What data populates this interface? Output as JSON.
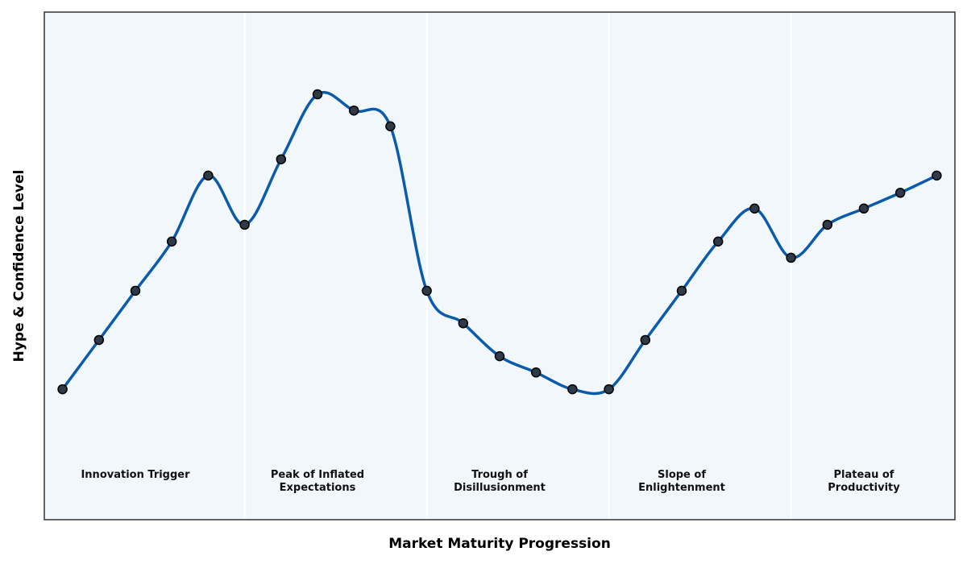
{
  "chart_data": {
    "type": "line",
    "xlabel": "Market Maturity Progression",
    "ylabel": "Hype & Confidence Level",
    "x": [
      0,
      1,
      2,
      3,
      4,
      5,
      6,
      7,
      8,
      9,
      10,
      11,
      12,
      13,
      14,
      15,
      16,
      17,
      18,
      19,
      20,
      21,
      22,
      23,
      24
    ],
    "values": [
      25.7,
      35.4,
      45.1,
      54.8,
      67.8,
      58.1,
      71.0,
      83.8,
      80.6,
      77.5,
      45.1,
      38.7,
      32.2,
      29.0,
      25.7,
      25.7,
      35.4,
      45.1,
      54.8,
      61.3,
      51.6,
      58.1,
      61.3,
      64.4,
      67.8
    ],
    "color": "#0a5bab",
    "marker_color": "#2e3a48",
    "background": "#f2f7fb",
    "xlim": [
      -0.5,
      24.5
    ],
    "ylim": [
      0,
      100
    ],
    "phases": [
      "Innovation Trigger",
      "Peak of Inflated\nExpectations",
      "Trough of\nDisillusionment",
      "Slope of\nEnlightenment",
      "Plateau of\nProductivity"
    ],
    "phase_boundaries": [
      5,
      10,
      15,
      20
    ]
  }
}
